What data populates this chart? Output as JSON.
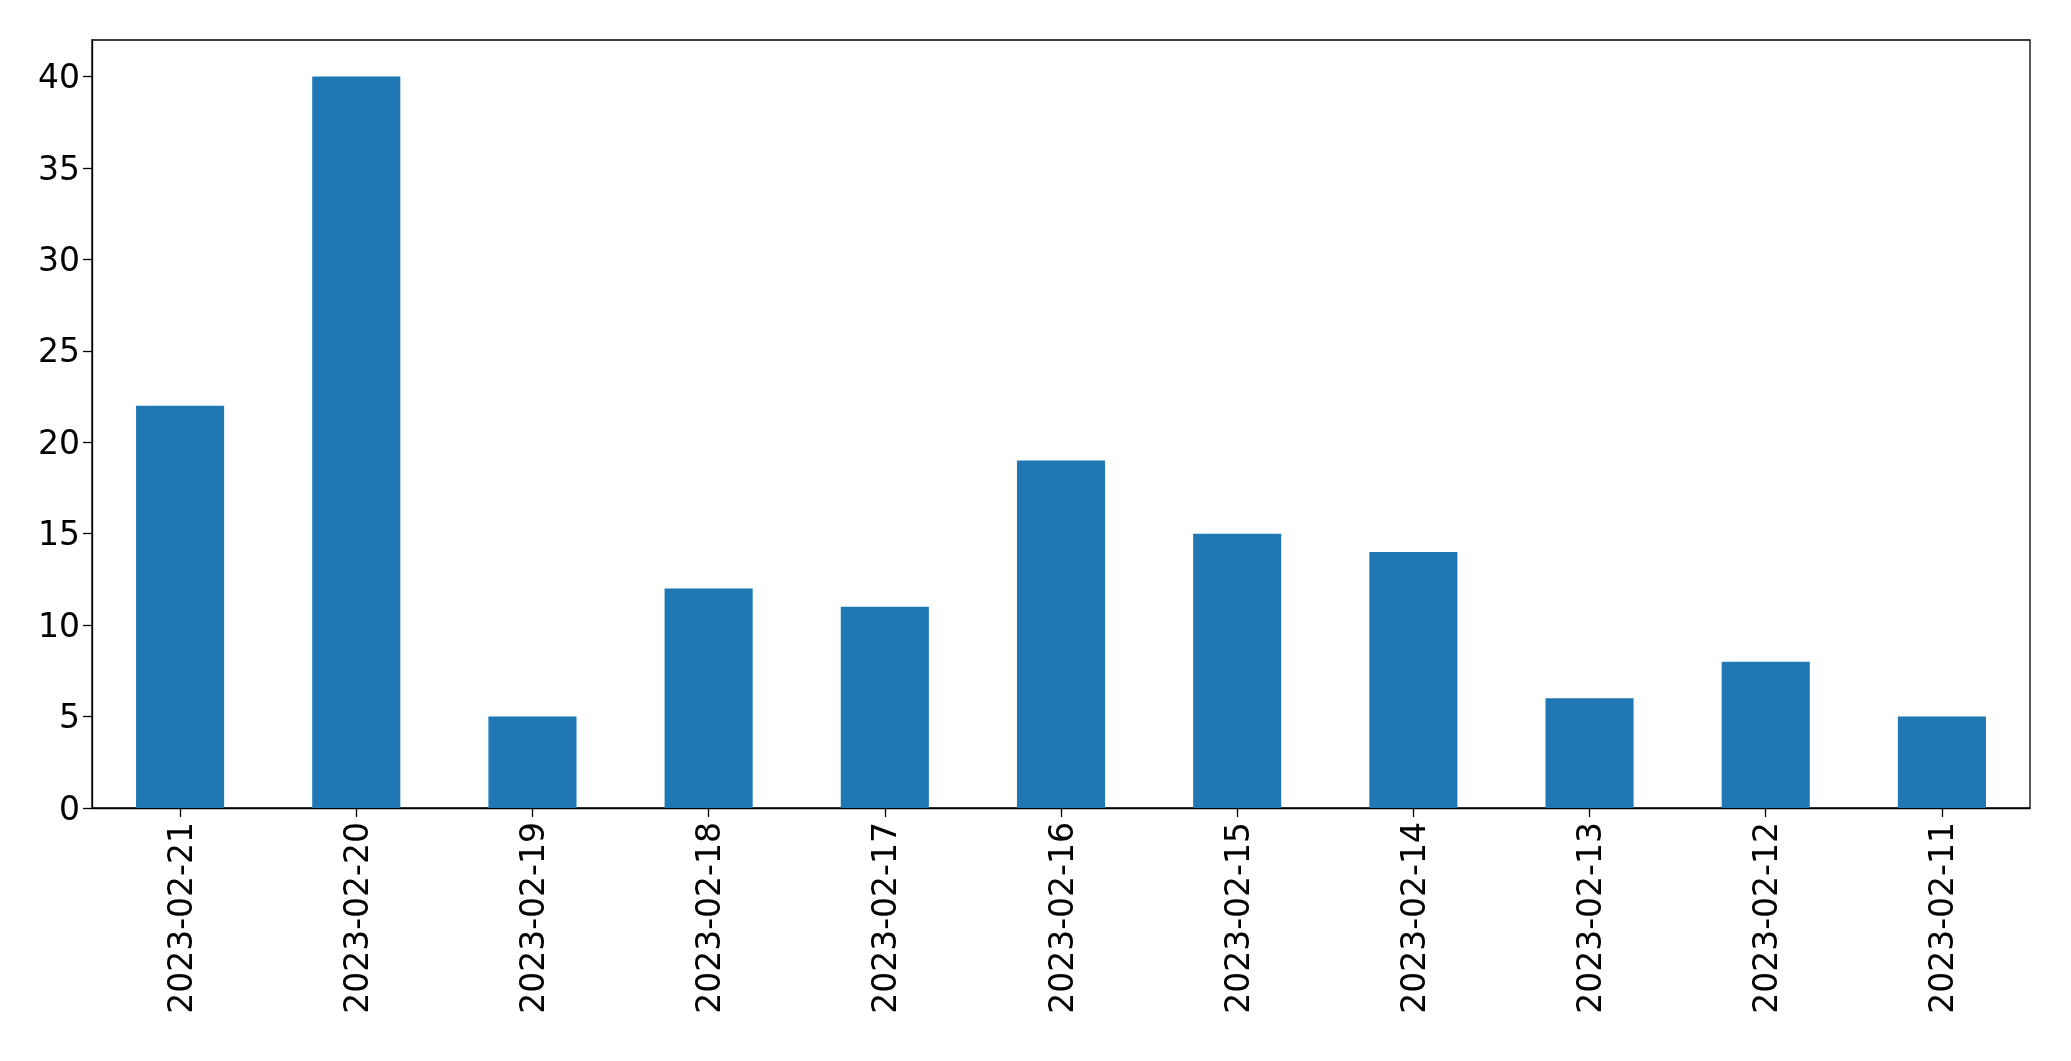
{
  "chart_data": {
    "type": "bar",
    "categories": [
      "2023-02-21",
      "2023-02-20",
      "2023-02-19",
      "2023-02-18",
      "2023-02-17",
      "2023-02-16",
      "2023-02-15",
      "2023-02-14",
      "2023-02-13",
      "2023-02-12",
      "2023-02-11"
    ],
    "values": [
      22,
      40,
      5,
      12,
      11,
      19,
      15,
      14,
      6,
      8,
      5
    ],
    "color": "#1f77b4",
    "ylim": [
      0,
      42
    ],
    "yticks": [
      0,
      5,
      10,
      15,
      20,
      25,
      30,
      35,
      40
    ],
    "grid": false
  }
}
